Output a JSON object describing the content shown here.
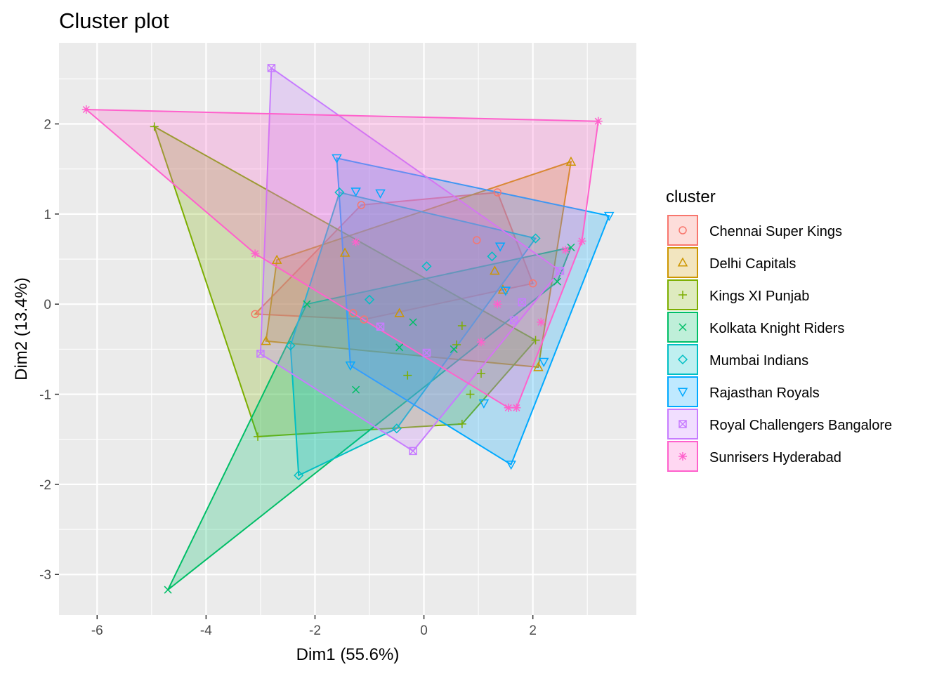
{
  "chart_data": {
    "type": "scatter",
    "title": "Cluster plot",
    "xlabel": "Dim1 (55.6%)",
    "ylabel": "Dim2 (13.4%)",
    "xlim": [
      -6.7,
      3.9
    ],
    "ylim": [
      -3.45,
      2.9
    ],
    "x_ticks": [
      -6,
      -4,
      -2,
      0,
      2
    ],
    "x_tick_labels": [
      "-6",
      "-4",
      "-2",
      "0",
      "2"
    ],
    "y_ticks": [
      -3,
      -2,
      -1,
      0,
      1,
      2
    ],
    "y_tick_labels": [
      "-3",
      "-2",
      "-1",
      "0",
      "1",
      "2"
    ],
    "grid": true,
    "legend": {
      "title": "cluster",
      "position": "right"
    },
    "series": [
      {
        "name": "Chennai Super Kings",
        "color": "#F8766D",
        "marker": "circle",
        "points": [
          [
            -3.1,
            -0.11
          ],
          [
            -1.15,
            1.1
          ],
          [
            1.35,
            1.24
          ],
          [
            2.0,
            0.23
          ],
          [
            0.97,
            0.71
          ],
          [
            -1.3,
            -0.1
          ],
          [
            -1.1,
            -0.17
          ]
        ]
      },
      {
        "name": "Delhi Capitals",
        "color": "#CD9600",
        "marker": "triangle",
        "points": [
          [
            -2.7,
            0.49
          ],
          [
            -2.9,
            -0.41
          ],
          [
            2.7,
            1.58
          ],
          [
            2.1,
            -0.7
          ],
          [
            -1.45,
            0.57
          ],
          [
            -0.45,
            -0.1
          ],
          [
            1.3,
            0.37
          ],
          [
            1.45,
            0.16
          ]
        ]
      },
      {
        "name": "Kings XI Punjab",
        "color": "#7CAE00",
        "marker": "plus",
        "points": [
          [
            -4.95,
            1.97
          ],
          [
            -3.05,
            -1.47
          ],
          [
            0.7,
            -1.33
          ],
          [
            2.05,
            -0.4
          ],
          [
            0.7,
            -0.24
          ],
          [
            0.6,
            -0.45
          ],
          [
            1.05,
            -0.77
          ],
          [
            -0.3,
            -0.79
          ],
          [
            0.85,
            -1.0
          ]
        ]
      },
      {
        "name": "Kolkata Knight Riders",
        "color": "#00BE67",
        "marker": "x",
        "points": [
          [
            -4.7,
            -3.17
          ],
          [
            -2.15,
            0.0
          ],
          [
            2.7,
            0.63
          ],
          [
            2.45,
            0.25
          ],
          [
            -1.25,
            -0.95
          ],
          [
            -0.45,
            -0.48
          ],
          [
            -0.2,
            -0.2
          ],
          [
            0.55,
            -0.5
          ]
        ]
      },
      {
        "name": "Mumbai Indians",
        "color": "#00BFC4",
        "marker": "diamond",
        "points": [
          [
            -1.55,
            1.24
          ],
          [
            2.05,
            0.73
          ],
          [
            -2.3,
            -1.9
          ],
          [
            -0.5,
            -1.38
          ],
          [
            -2.45,
            -0.46
          ],
          [
            -1.0,
            0.05
          ],
          [
            1.25,
            0.53
          ],
          [
            0.05,
            0.42
          ]
        ]
      },
      {
        "name": "Rajasthan Royals",
        "color": "#00A9FF",
        "marker": "triangle-down",
        "points": [
          [
            -1.6,
            1.62
          ],
          [
            3.4,
            0.98
          ],
          [
            1.6,
            -1.78
          ],
          [
            -1.35,
            -0.68
          ],
          [
            -1.25,
            1.25
          ],
          [
            -0.8,
            1.23
          ],
          [
            1.4,
            0.64
          ],
          [
            2.2,
            -0.64
          ],
          [
            1.1,
            -1.1
          ],
          [
            1.5,
            0.15
          ]
        ]
      },
      {
        "name": "Royal Challengers Bangalore",
        "color": "#C77CFF",
        "marker": "square-x",
        "points": [
          [
            -2.8,
            2.62
          ],
          [
            -3.0,
            -0.55
          ],
          [
            -0.2,
            -1.63
          ],
          [
            2.5,
            0.37
          ],
          [
            1.8,
            0.02
          ],
          [
            -0.8,
            -0.25
          ],
          [
            0.05,
            -0.54
          ],
          [
            1.65,
            -0.18
          ]
        ]
      },
      {
        "name": "Sunrisers Hyderabad",
        "color": "#FF61CC",
        "marker": "asterisk",
        "points": [
          [
            -6.2,
            2.16
          ],
          [
            3.2,
            2.03
          ],
          [
            2.9,
            0.7
          ],
          [
            1.7,
            -1.15
          ],
          [
            1.55,
            -1.15
          ],
          [
            -3.1,
            0.56
          ],
          [
            -1.25,
            0.69
          ],
          [
            1.35,
            0.0
          ],
          [
            2.15,
            -0.2
          ],
          [
            1.05,
            -0.42
          ],
          [
            2.6,
            0.6
          ]
        ]
      }
    ]
  }
}
